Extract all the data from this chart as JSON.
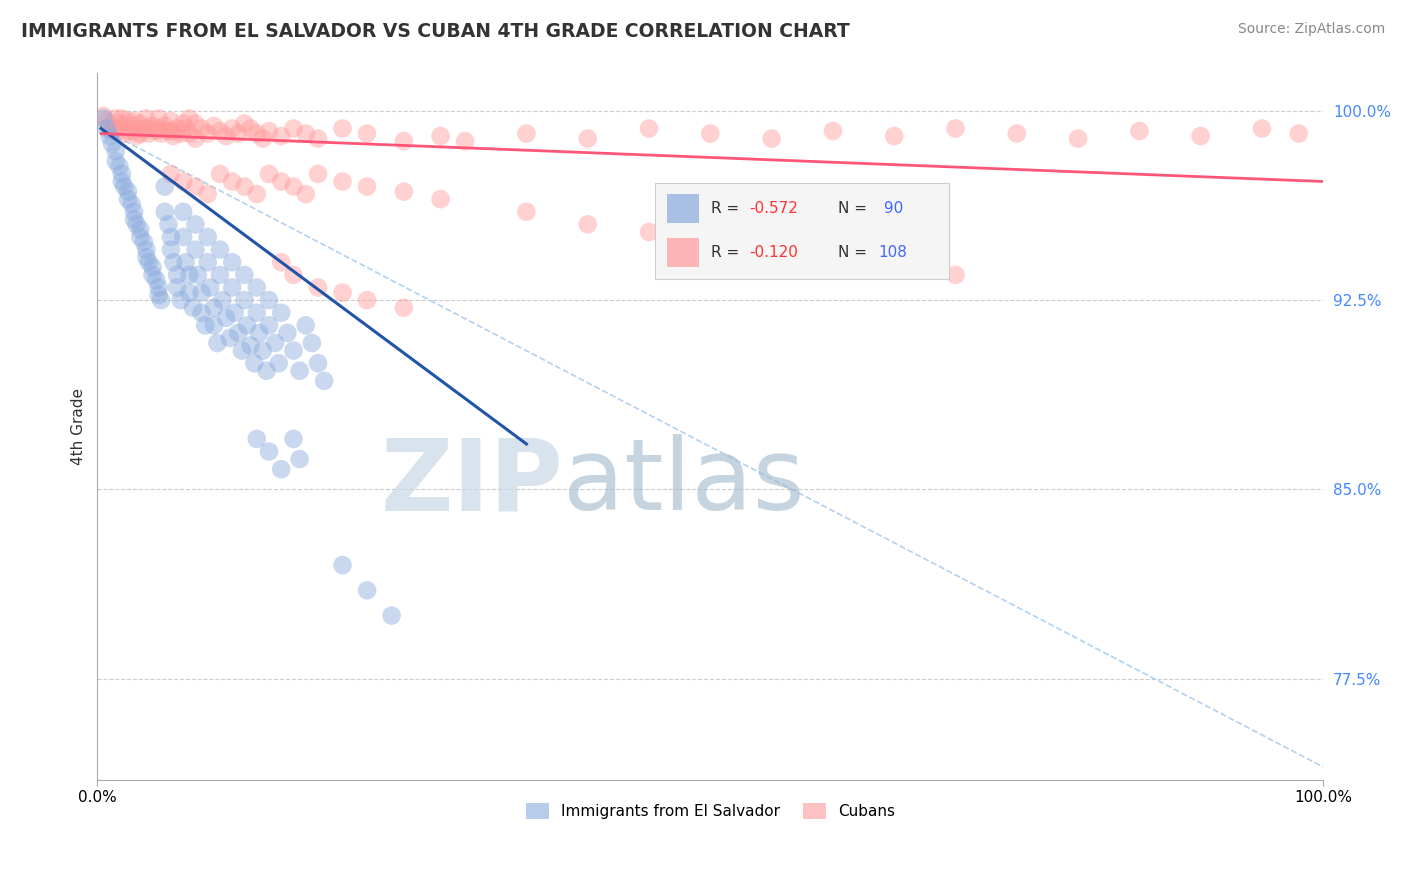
{
  "title": "IMMIGRANTS FROM EL SALVADOR VS CUBAN 4TH GRADE CORRELATION CHART",
  "source_text": "Source: ZipAtlas.com",
  "ylabel": "4th Grade",
  "xlim": [
    0.0,
    1.0
  ],
  "ylim": [
    0.735,
    1.015
  ],
  "legend_r1": "-0.572",
  "legend_n1": "90",
  "legend_r2": "-0.120",
  "legend_n2": "108",
  "legend_label1": "Immigrants from El Salvador",
  "legend_label2": "Cubans",
  "blue_color": "#88AADD",
  "pink_color": "#FF9999",
  "trendline1_color": "#2255AA",
  "trendline2_color": "#FF5577",
  "dashed_line_color": "#AACCEE",
  "watermark_zip": "ZIP",
  "watermark_atlas": "atlas",
  "watermark_color_zip": "#CCDDEE",
  "watermark_color_atlas": "#AABBCC",
  "grid_color": "#CCCCCC",
  "blue_scatter": [
    [
      0.005,
      0.997
    ],
    [
      0.008,
      0.993
    ],
    [
      0.01,
      0.99
    ],
    [
      0.012,
      0.987
    ],
    [
      0.015,
      0.984
    ],
    [
      0.015,
      0.98
    ],
    [
      0.018,
      0.978
    ],
    [
      0.02,
      0.975
    ],
    [
      0.02,
      0.972
    ],
    [
      0.022,
      0.97
    ],
    [
      0.025,
      0.968
    ],
    [
      0.025,
      0.965
    ],
    [
      0.028,
      0.963
    ],
    [
      0.03,
      0.96
    ],
    [
      0.03,
      0.957
    ],
    [
      0.032,
      0.955
    ],
    [
      0.035,
      0.953
    ],
    [
      0.035,
      0.95
    ],
    [
      0.038,
      0.948
    ],
    [
      0.04,
      0.945
    ],
    [
      0.04,
      0.942
    ],
    [
      0.042,
      0.94
    ],
    [
      0.045,
      0.938
    ],
    [
      0.045,
      0.935
    ],
    [
      0.048,
      0.933
    ],
    [
      0.05,
      0.93
    ],
    [
      0.05,
      0.927
    ],
    [
      0.052,
      0.925
    ],
    [
      0.055,
      0.97
    ],
    [
      0.055,
      0.96
    ],
    [
      0.058,
      0.955
    ],
    [
      0.06,
      0.95
    ],
    [
      0.06,
      0.945
    ],
    [
      0.062,
      0.94
    ],
    [
      0.065,
      0.935
    ],
    [
      0.065,
      0.93
    ],
    [
      0.068,
      0.925
    ],
    [
      0.07,
      0.96
    ],
    [
      0.07,
      0.95
    ],
    [
      0.072,
      0.94
    ],
    [
      0.075,
      0.935
    ],
    [
      0.075,
      0.928
    ],
    [
      0.078,
      0.922
    ],
    [
      0.08,
      0.955
    ],
    [
      0.08,
      0.945
    ],
    [
      0.082,
      0.935
    ],
    [
      0.085,
      0.928
    ],
    [
      0.085,
      0.92
    ],
    [
      0.088,
      0.915
    ],
    [
      0.09,
      0.95
    ],
    [
      0.09,
      0.94
    ],
    [
      0.092,
      0.93
    ],
    [
      0.095,
      0.922
    ],
    [
      0.095,
      0.915
    ],
    [
      0.098,
      0.908
    ],
    [
      0.1,
      0.945
    ],
    [
      0.1,
      0.935
    ],
    [
      0.102,
      0.925
    ],
    [
      0.105,
      0.918
    ],
    [
      0.108,
      0.91
    ],
    [
      0.11,
      0.94
    ],
    [
      0.11,
      0.93
    ],
    [
      0.112,
      0.92
    ],
    [
      0.115,
      0.912
    ],
    [
      0.118,
      0.905
    ],
    [
      0.12,
      0.935
    ],
    [
      0.12,
      0.925
    ],
    [
      0.122,
      0.915
    ],
    [
      0.125,
      0.907
    ],
    [
      0.128,
      0.9
    ],
    [
      0.13,
      0.93
    ],
    [
      0.13,
      0.92
    ],
    [
      0.132,
      0.912
    ],
    [
      0.135,
      0.905
    ],
    [
      0.138,
      0.897
    ],
    [
      0.14,
      0.925
    ],
    [
      0.14,
      0.915
    ],
    [
      0.145,
      0.908
    ],
    [
      0.148,
      0.9
    ],
    [
      0.15,
      0.92
    ],
    [
      0.155,
      0.912
    ],
    [
      0.16,
      0.905
    ],
    [
      0.165,
      0.897
    ],
    [
      0.17,
      0.915
    ],
    [
      0.175,
      0.908
    ],
    [
      0.18,
      0.9
    ],
    [
      0.185,
      0.893
    ],
    [
      0.13,
      0.87
    ],
    [
      0.14,
      0.865
    ],
    [
      0.15,
      0.858
    ],
    [
      0.16,
      0.87
    ],
    [
      0.165,
      0.862
    ],
    [
      0.2,
      0.82
    ],
    [
      0.22,
      0.81
    ],
    [
      0.24,
      0.8
    ]
  ],
  "pink_scatter": [
    [
      0.005,
      0.998
    ],
    [
      0.008,
      0.996
    ],
    [
      0.01,
      0.994
    ],
    [
      0.012,
      0.992
    ],
    [
      0.015,
      0.997
    ],
    [
      0.015,
      0.993
    ],
    [
      0.018,
      0.995
    ],
    [
      0.02,
      0.997
    ],
    [
      0.02,
      0.993
    ],
    [
      0.022,
      0.991
    ],
    [
      0.025,
      0.996
    ],
    [
      0.025,
      0.992
    ],
    [
      0.028,
      0.994
    ],
    [
      0.03,
      0.996
    ],
    [
      0.03,
      0.992
    ],
    [
      0.032,
      0.99
    ],
    [
      0.035,
      0.995
    ],
    [
      0.035,
      0.991
    ],
    [
      0.038,
      0.993
    ],
    [
      0.04,
      0.997
    ],
    [
      0.04,
      0.993
    ],
    [
      0.042,
      0.991
    ],
    [
      0.045,
      0.994
    ],
    [
      0.048,
      0.992
    ],
    [
      0.05,
      0.997
    ],
    [
      0.05,
      0.993
    ],
    [
      0.052,
      0.991
    ],
    [
      0.055,
      0.994
    ],
    [
      0.058,
      0.992
    ],
    [
      0.06,
      0.996
    ],
    [
      0.06,
      0.992
    ],
    [
      0.062,
      0.99
    ],
    [
      0.065,
      0.993
    ],
    [
      0.068,
      0.991
    ],
    [
      0.07,
      0.995
    ],
    [
      0.072,
      0.993
    ],
    [
      0.075,
      0.997
    ],
    [
      0.075,
      0.991
    ],
    [
      0.08,
      0.995
    ],
    [
      0.08,
      0.989
    ],
    [
      0.085,
      0.993
    ],
    [
      0.09,
      0.991
    ],
    [
      0.095,
      0.994
    ],
    [
      0.1,
      0.992
    ],
    [
      0.105,
      0.99
    ],
    [
      0.11,
      0.993
    ],
    [
      0.115,
      0.991
    ],
    [
      0.12,
      0.995
    ],
    [
      0.125,
      0.993
    ],
    [
      0.13,
      0.991
    ],
    [
      0.135,
      0.989
    ],
    [
      0.14,
      0.992
    ],
    [
      0.15,
      0.99
    ],
    [
      0.16,
      0.993
    ],
    [
      0.17,
      0.991
    ],
    [
      0.18,
      0.989
    ],
    [
      0.2,
      0.993
    ],
    [
      0.22,
      0.991
    ],
    [
      0.25,
      0.988
    ],
    [
      0.28,
      0.99
    ],
    [
      0.3,
      0.988
    ],
    [
      0.35,
      0.991
    ],
    [
      0.4,
      0.989
    ],
    [
      0.45,
      0.993
    ],
    [
      0.5,
      0.991
    ],
    [
      0.55,
      0.989
    ],
    [
      0.6,
      0.992
    ],
    [
      0.65,
      0.99
    ],
    [
      0.7,
      0.993
    ],
    [
      0.75,
      0.991
    ],
    [
      0.8,
      0.989
    ],
    [
      0.85,
      0.992
    ],
    [
      0.9,
      0.99
    ],
    [
      0.95,
      0.993
    ],
    [
      0.98,
      0.991
    ],
    [
      0.06,
      0.975
    ],
    [
      0.07,
      0.972
    ],
    [
      0.08,
      0.97
    ],
    [
      0.09,
      0.967
    ],
    [
      0.1,
      0.975
    ],
    [
      0.11,
      0.972
    ],
    [
      0.12,
      0.97
    ],
    [
      0.13,
      0.967
    ],
    [
      0.14,
      0.975
    ],
    [
      0.15,
      0.972
    ],
    [
      0.16,
      0.97
    ],
    [
      0.17,
      0.967
    ],
    [
      0.18,
      0.975
    ],
    [
      0.2,
      0.972
    ],
    [
      0.22,
      0.97
    ],
    [
      0.25,
      0.968
    ],
    [
      0.28,
      0.965
    ],
    [
      0.35,
      0.96
    ],
    [
      0.4,
      0.955
    ],
    [
      0.45,
      0.952
    ],
    [
      0.5,
      0.948
    ],
    [
      0.55,
      0.944
    ],
    [
      0.6,
      0.94
    ],
    [
      0.65,
      0.938
    ],
    [
      0.7,
      0.935
    ],
    [
      0.15,
      0.94
    ],
    [
      0.16,
      0.935
    ],
    [
      0.18,
      0.93
    ],
    [
      0.2,
      0.928
    ],
    [
      0.22,
      0.925
    ],
    [
      0.25,
      0.922
    ]
  ],
  "trendline1_x": [
    0.003,
    0.35
  ],
  "trendline1_y": [
    0.993,
    0.868
  ],
  "trendline2_x": [
    0.003,
    1.0
  ],
  "trendline2_y": [
    0.991,
    0.972
  ],
  "dashed_line_x": [
    0.003,
    1.0
  ],
  "dashed_line_y": [
    0.993,
    0.74
  ],
  "yticks": [
    0.775,
    0.85,
    0.925,
    1.0
  ],
  "ytick_labels_display": [
    "77.5%",
    "85.0%",
    "92.5%",
    "100.0%"
  ],
  "xticks": [
    0.0,
    1.0
  ],
  "xtick_labels_display": [
    "0.0%",
    "100.0%"
  ]
}
